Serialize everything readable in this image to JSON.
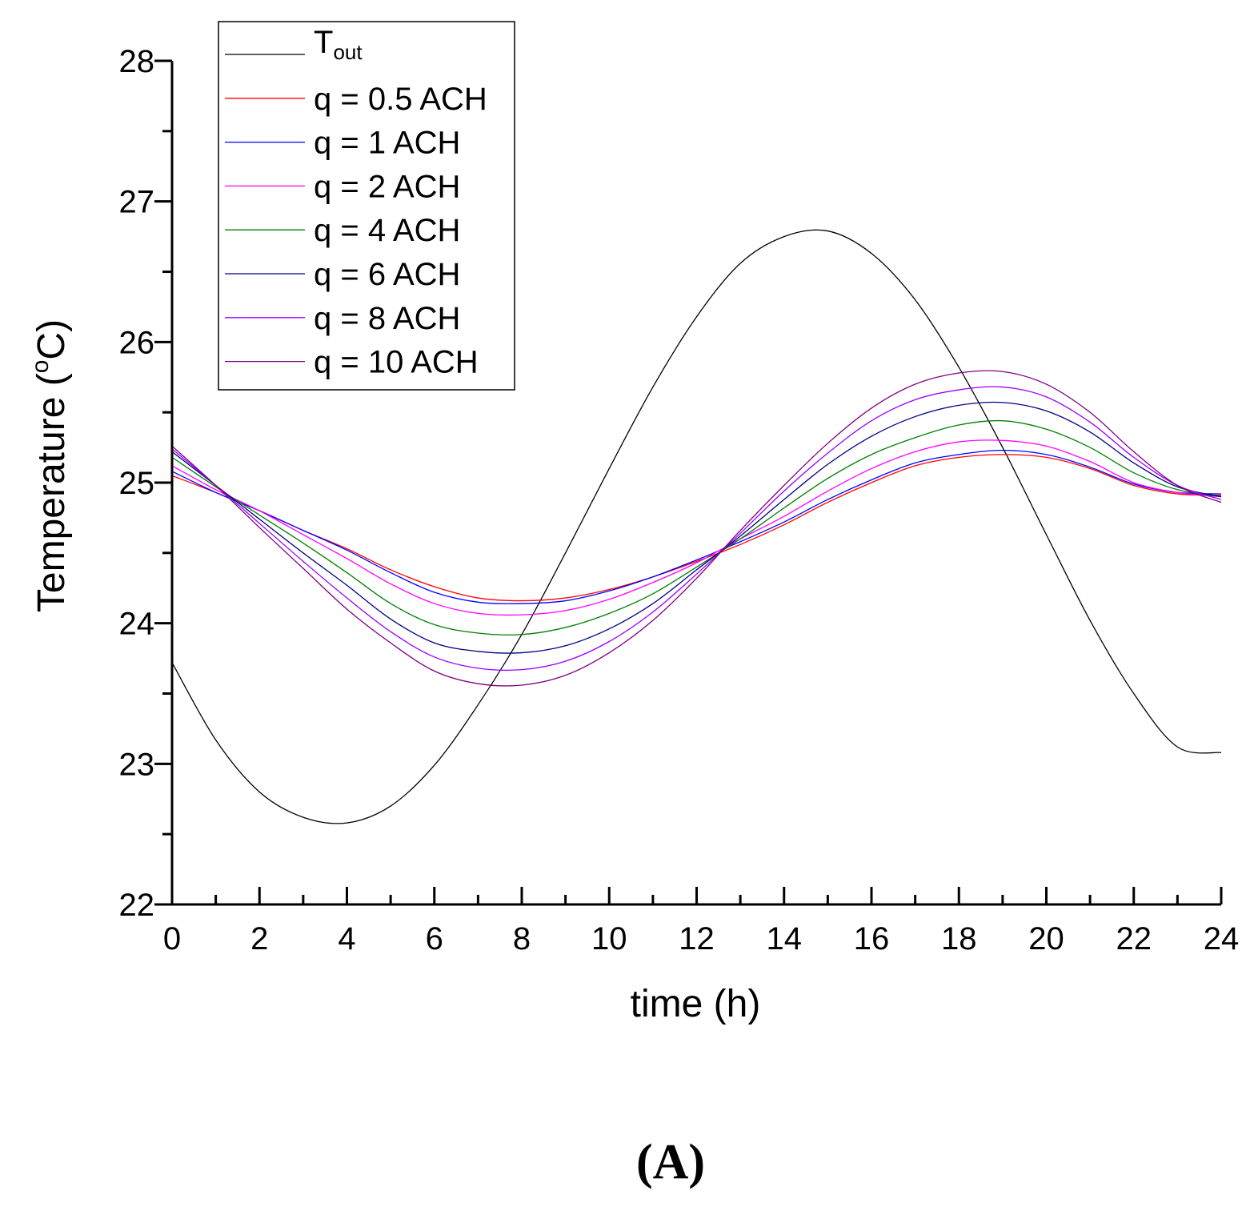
{
  "chart_data": {
    "type": "line",
    "xlabel": "time (h)",
    "ylabel_main": "Temperature (",
    "ylabel_sup": "o",
    "ylabel_end": "C)",
    "xlim": [
      0,
      24
    ],
    "ylim": [
      22,
      28
    ],
    "xticks": [
      0,
      2,
      4,
      6,
      8,
      10,
      12,
      14,
      16,
      18,
      20,
      22,
      24
    ],
    "xtick_labels": [
      "0",
      "2",
      "4",
      "6",
      "8",
      "10",
      "12",
      "14",
      "16",
      "18",
      "20",
      "22",
      "24"
    ],
    "yticks": [
      22,
      23,
      24,
      25,
      26,
      27,
      28
    ],
    "ytick_labels": [
      "22",
      "23",
      "24",
      "25",
      "26",
      "27",
      "28"
    ],
    "grid": false,
    "legend_position": "top-left",
    "panel_label": "(A)",
    "legend_tout_main": "T",
    "legend_tout_sub": "out",
    "x": [
      0,
      1,
      2,
      3,
      4,
      5,
      6,
      7,
      8,
      9,
      10,
      11,
      12,
      13,
      14,
      15,
      16,
      17,
      18,
      19,
      20,
      21,
      22,
      23,
      24
    ],
    "series": [
      {
        "name": "T_out",
        "label": "",
        "color": "#000000",
        "values": [
          23.72,
          23.17,
          22.8,
          22.62,
          22.58,
          22.7,
          22.99,
          23.42,
          23.92,
          24.5,
          25.1,
          25.68,
          26.18,
          26.56,
          26.75,
          26.79,
          26.63,
          26.3,
          25.82,
          25.25,
          24.63,
          24.02,
          23.5,
          23.12,
          23.08
        ]
      },
      {
        "name": "q = 0.5 ACH",
        "label": "q = 0.5 ACH",
        "color": "#ff0000",
        "values": [
          25.05,
          24.93,
          24.8,
          24.66,
          24.53,
          24.38,
          24.26,
          24.18,
          24.16,
          24.18,
          24.24,
          24.33,
          24.44,
          24.56,
          24.7,
          24.86,
          25.0,
          25.12,
          25.18,
          25.2,
          25.18,
          25.1,
          24.98,
          24.92,
          24.91
        ]
      },
      {
        "name": "q = 1 ACH",
        "label": "q = 1 ACH",
        "color": "#0000ff",
        "values": [
          25.08,
          24.93,
          24.8,
          24.66,
          24.52,
          24.36,
          24.22,
          24.15,
          24.14,
          24.16,
          24.23,
          24.33,
          24.45,
          24.58,
          24.72,
          24.88,
          25.02,
          25.14,
          25.2,
          25.23,
          25.2,
          25.11,
          24.99,
          24.93,
          24.92
        ]
      },
      {
        "name": "q = 2 ACH",
        "label": "q = 2 ACH",
        "color": "#ff00ff",
        "values": [
          25.12,
          24.95,
          24.8,
          24.63,
          24.46,
          24.28,
          24.14,
          24.07,
          24.06,
          24.09,
          24.17,
          24.29,
          24.43,
          24.6,
          24.76,
          24.94,
          25.1,
          25.22,
          25.29,
          25.3,
          25.26,
          25.15,
          25.0,
          24.93,
          24.9
        ]
      },
      {
        "name": "q = 4 ACH",
        "label": "q = 4 ACH",
        "color": "#008000",
        "values": [
          25.18,
          24.97,
          24.77,
          24.57,
          24.36,
          24.14,
          23.99,
          23.93,
          23.92,
          23.97,
          24.07,
          24.21,
          24.4,
          24.6,
          24.82,
          25.03,
          25.2,
          25.32,
          25.41,
          25.44,
          25.38,
          25.25,
          25.07,
          24.95,
          24.9
        ]
      },
      {
        "name": "q = 6 ACH",
        "label": "q = 6 ACH",
        "color": "#000080",
        "values": [
          25.22,
          24.98,
          24.74,
          24.5,
          24.27,
          24.03,
          23.86,
          23.8,
          23.79,
          23.84,
          23.96,
          24.14,
          24.38,
          24.62,
          24.88,
          25.13,
          25.33,
          25.47,
          25.55,
          25.57,
          25.51,
          25.36,
          25.14,
          24.97,
          24.9
        ]
      },
      {
        "name": "q = 8 ACH",
        "label": "q = 8 ACH",
        "color": "#9900ff",
        "values": [
          25.24,
          24.98,
          24.71,
          24.44,
          24.18,
          23.94,
          23.76,
          23.68,
          23.67,
          23.73,
          23.87,
          24.08,
          24.35,
          24.64,
          24.94,
          25.21,
          25.44,
          25.59,
          25.66,
          25.68,
          25.61,
          25.43,
          25.18,
          24.98,
          24.88
        ]
      },
      {
        "name": "q = 10 ACH",
        "label": "q = 10 ACH",
        "color": "#800080",
        "values": [
          25.26,
          24.98,
          24.68,
          24.39,
          24.1,
          23.86,
          23.66,
          23.57,
          23.56,
          23.63,
          23.79,
          24.02,
          24.32,
          24.66,
          24.98,
          25.28,
          25.53,
          25.7,
          25.78,
          25.79,
          25.7,
          25.5,
          25.22,
          24.98,
          24.86
        ]
      }
    ]
  }
}
